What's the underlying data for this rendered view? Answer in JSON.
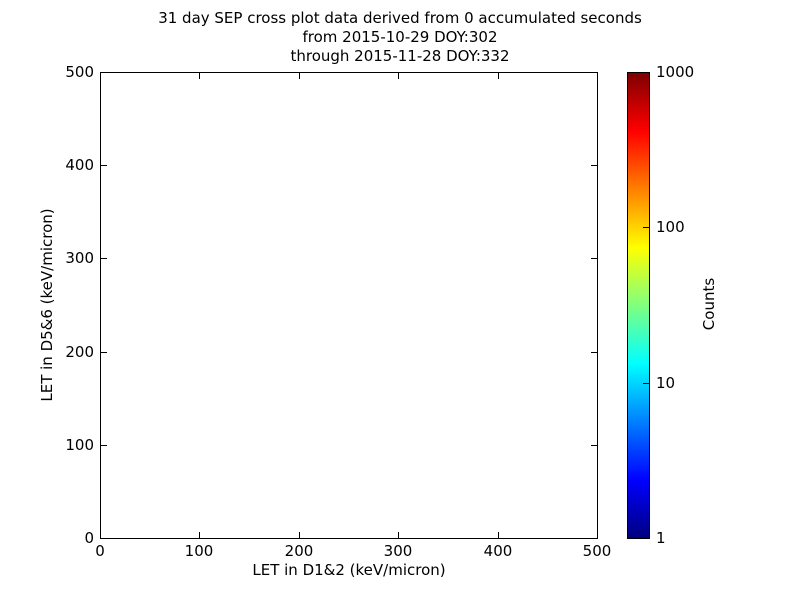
{
  "chart_data": {
    "type": "scatter",
    "title": "31 day SEP cross plot data derived from 0 accumulated seconds",
    "subtitle": [
      "from 2015-10-29 DOY:302",
      "through 2015-11-28 DOY:332"
    ],
    "xlabel": "LET in D1&2 (keV/micron)",
    "ylabel": "LET in D5&6 (keV/micron)",
    "xlim": [
      0,
      500
    ],
    "ylim": [
      0,
      500
    ],
    "x_ticks": [
      "0",
      "100",
      "200",
      "300",
      "400",
      "500"
    ],
    "y_ticks": [
      "0",
      "100",
      "200",
      "300",
      "400",
      "500"
    ],
    "points": [],
    "grid": false,
    "background_color": "#ffffff",
    "axis_color": "#000000",
    "colorbar": {
      "label": "Counts",
      "scale": "log",
      "range": [
        1,
        1000
      ],
      "ticks": [
        "1",
        "10",
        "100",
        "1000"
      ],
      "colormap": "jet",
      "gradient_stops": [
        {
          "pos": 0.0,
          "color": "#00007f"
        },
        {
          "pos": 0.125,
          "color": "#0000ff"
        },
        {
          "pos": 0.375,
          "color": "#00ffff"
        },
        {
          "pos": 0.625,
          "color": "#ffff00"
        },
        {
          "pos": 0.875,
          "color": "#ff0000"
        },
        {
          "pos": 1.0,
          "color": "#7f0000"
        }
      ]
    }
  }
}
